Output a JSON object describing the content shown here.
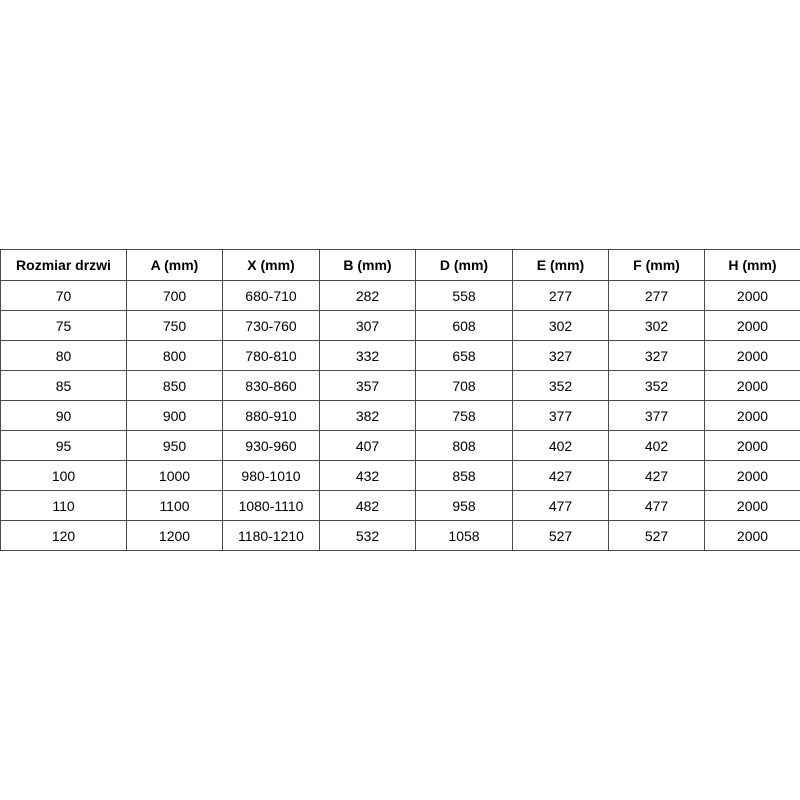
{
  "table": {
    "headers": [
      "Rozmiar drzwi",
      "A (mm)",
      "X (mm)",
      "B (mm)",
      "D (mm)",
      "E (mm)",
      "F (mm)",
      "H (mm)"
    ],
    "rows": [
      [
        "70",
        "700",
        "680-710",
        "282",
        "558",
        "277",
        "277",
        "2000"
      ],
      [
        "75",
        "750",
        "730-760",
        "307",
        "608",
        "302",
        "302",
        "2000"
      ],
      [
        "80",
        "800",
        "780-810",
        "332",
        "658",
        "327",
        "327",
        "2000"
      ],
      [
        "85",
        "850",
        "830-860",
        "357",
        "708",
        "352",
        "352",
        "2000"
      ],
      [
        "90",
        "900",
        "880-910",
        "382",
        "758",
        "377",
        "377",
        "2000"
      ],
      [
        "95",
        "950",
        "930-960",
        "407",
        "808",
        "402",
        "402",
        "2000"
      ],
      [
        "100",
        "1000",
        "980-1010",
        "432",
        "858",
        "427",
        "427",
        "2000"
      ],
      [
        "110",
        "1100",
        "1080-1110",
        "482",
        "958",
        "477",
        "477",
        "2000"
      ],
      [
        "120",
        "1200",
        "1180-1210",
        "532",
        "1058",
        "527",
        "527",
        "2000"
      ]
    ]
  }
}
